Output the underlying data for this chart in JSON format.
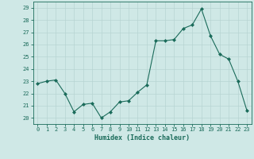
{
  "x": [
    0,
    1,
    2,
    3,
    4,
    5,
    6,
    7,
    8,
    9,
    10,
    11,
    12,
    13,
    14,
    15,
    16,
    17,
    18,
    19,
    20,
    21,
    22,
    23
  ],
  "y": [
    22.8,
    23.0,
    23.1,
    22.0,
    20.5,
    21.1,
    21.2,
    20.0,
    20.5,
    21.3,
    21.4,
    22.1,
    22.7,
    26.3,
    26.3,
    26.4,
    27.3,
    27.6,
    28.9,
    26.7,
    25.2,
    24.8,
    23.0,
    20.6
  ],
  "line_color": "#1a6b5a",
  "marker": "D",
  "marker_size": 2.0,
  "bg_color": "#cfe8e6",
  "grid_color": "#b8d4d2",
  "xlabel": "Humidex (Indice chaleur)",
  "ylim": [
    19.5,
    29.5
  ],
  "xlim": [
    -0.5,
    23.5
  ],
  "yticks": [
    20,
    21,
    22,
    23,
    24,
    25,
    26,
    27,
    28,
    29
  ],
  "xticks": [
    0,
    1,
    2,
    3,
    4,
    5,
    6,
    7,
    8,
    9,
    10,
    11,
    12,
    13,
    14,
    15,
    16,
    17,
    18,
    19,
    20,
    21,
    22,
    23
  ],
  "tick_color": "#1a6b5a",
  "label_color": "#1a6b5a",
  "spine_color": "#1a6b5a",
  "tick_fontsize": 5.0,
  "xlabel_fontsize": 6.0
}
